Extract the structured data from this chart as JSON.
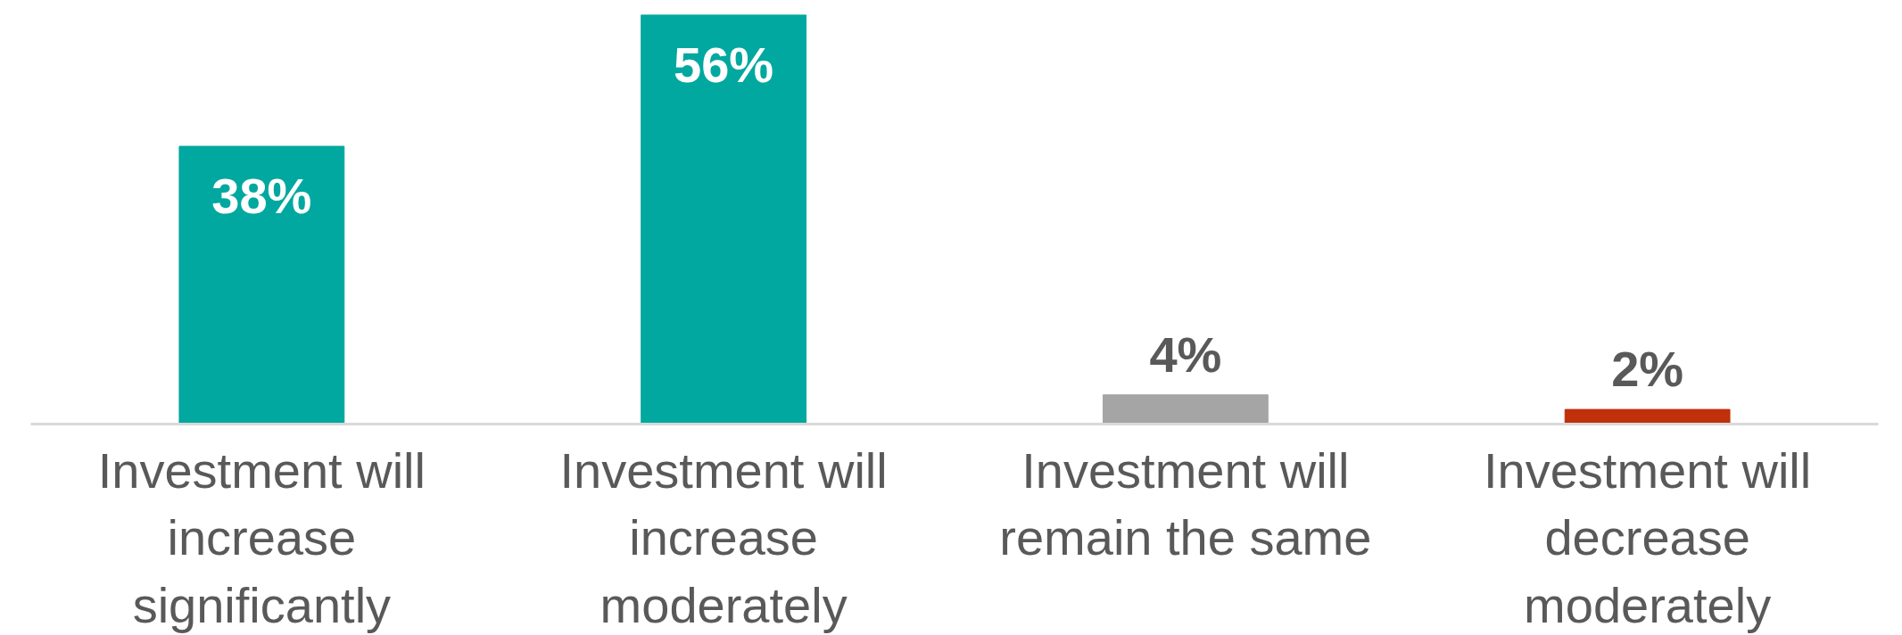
{
  "chart_data": {
    "type": "bar",
    "categories": [
      "Investment will increase significantly",
      "Investment will increase moderately",
      "Investment will remain the same",
      "Investment will decrease moderately"
    ],
    "values": [
      38,
      56,
      4,
      2
    ],
    "colors": [
      "#00a8a0",
      "#00a8a0",
      "#a5a5a5",
      "#c0300a"
    ],
    "value_labels": [
      "38%",
      "56%",
      "4%",
      "2%"
    ]
  }
}
